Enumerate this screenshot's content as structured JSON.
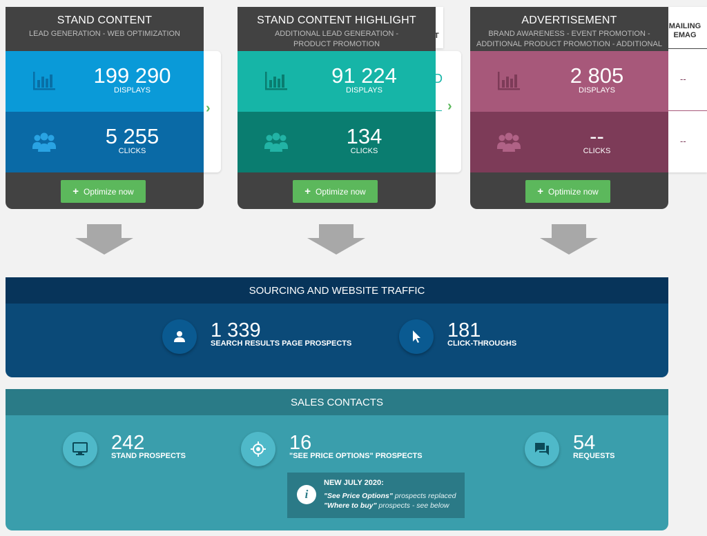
{
  "cards": [
    {
      "title": "STAND CONTENT",
      "subtitle": "LEAD GENERATION - WEB OPTIMIZATION",
      "displays_value": "199 290",
      "displays_label": "DISPLAYS",
      "clicks_value": "5 255",
      "clicks_label": "CLICKS",
      "button_label": "Optimize now",
      "top_color": "#0a9ad8",
      "bottom_color": "#0a6aa6",
      "icon_color": "#086fa6"
    },
    {
      "title": "STAND CONTENT HIGHLIGHT",
      "subtitle": "ADDITIONAL LEAD GENERATION - PRODUCT PROMOTION",
      "displays_value": "91 224",
      "displays_label": "DISPLAYS",
      "clicks_value": "134",
      "clicks_label": "CLICKS",
      "button_label": "Optimize now",
      "top_color": "#16b5a7",
      "bottom_color": "#0a7d70",
      "icon_color": "#0a7d70"
    },
    {
      "title": "ADVERTISEMENT",
      "subtitle": "BRAND AWARENESS - EVENT PROMOTION - ADDITIONAL PRODUCT PROMOTION - ADDITIONAL LEAD GENERATION",
      "displays_value": "2 805",
      "displays_label": "DISPLAYS",
      "clicks_value": "--",
      "clicks_label": "CLICKS",
      "button_label": "Optimize now",
      "top_color": "#a7587a",
      "bottom_color": "#7d3b58",
      "icon_color": "#7d3b58"
    }
  ],
  "peek": {
    "card2_head_fragment": "T",
    "card2_value_fragment": "D",
    "mailing_title_line1": "MAILING",
    "mailing_title_line2": "EMAG",
    "mailing_dash1": "--",
    "mailing_dash2": "--"
  },
  "sourcing": {
    "title": "SOURCING AND WEBSITE TRAFFIC",
    "stats": [
      {
        "value": "1 339",
        "label": "SEARCH RESULTS PAGE PROSPECTS",
        "icon": "person-icon"
      },
      {
        "value": "181",
        "label": "CLICK-THROUGHS",
        "icon": "cursor-icon"
      }
    ]
  },
  "sales": {
    "title": "SALES CONTACTS",
    "stats": [
      {
        "value": "242",
        "label": "STAND PROSPECTS",
        "icon": "monitor-icon"
      },
      {
        "value": "16",
        "label": "\"SEE PRICE OPTIONS\" PROSPECTS",
        "icon": "target-icon"
      },
      {
        "value": "54",
        "label": "REQUESTS",
        "icon": "chat-icon"
      }
    ],
    "notice": {
      "title": "NEW JULY 2020:",
      "line1_bold": "\"See Price Options\"",
      "line1_rest": " prospects replaced",
      "line2_bold": "\"Where to buy\"",
      "line2_rest": " prospects - see below"
    }
  },
  "colors": {
    "sourcing_head": "#07345a",
    "sourcing_body": "#0b4a78",
    "sourcing_circle": "#0a5a91",
    "sales_head": "#2a7b87",
    "sales_body": "#3a9eac",
    "sales_circle": "#4fb9c9",
    "arrow": "#a8a8a8",
    "button_green": "#5cb85c"
  }
}
